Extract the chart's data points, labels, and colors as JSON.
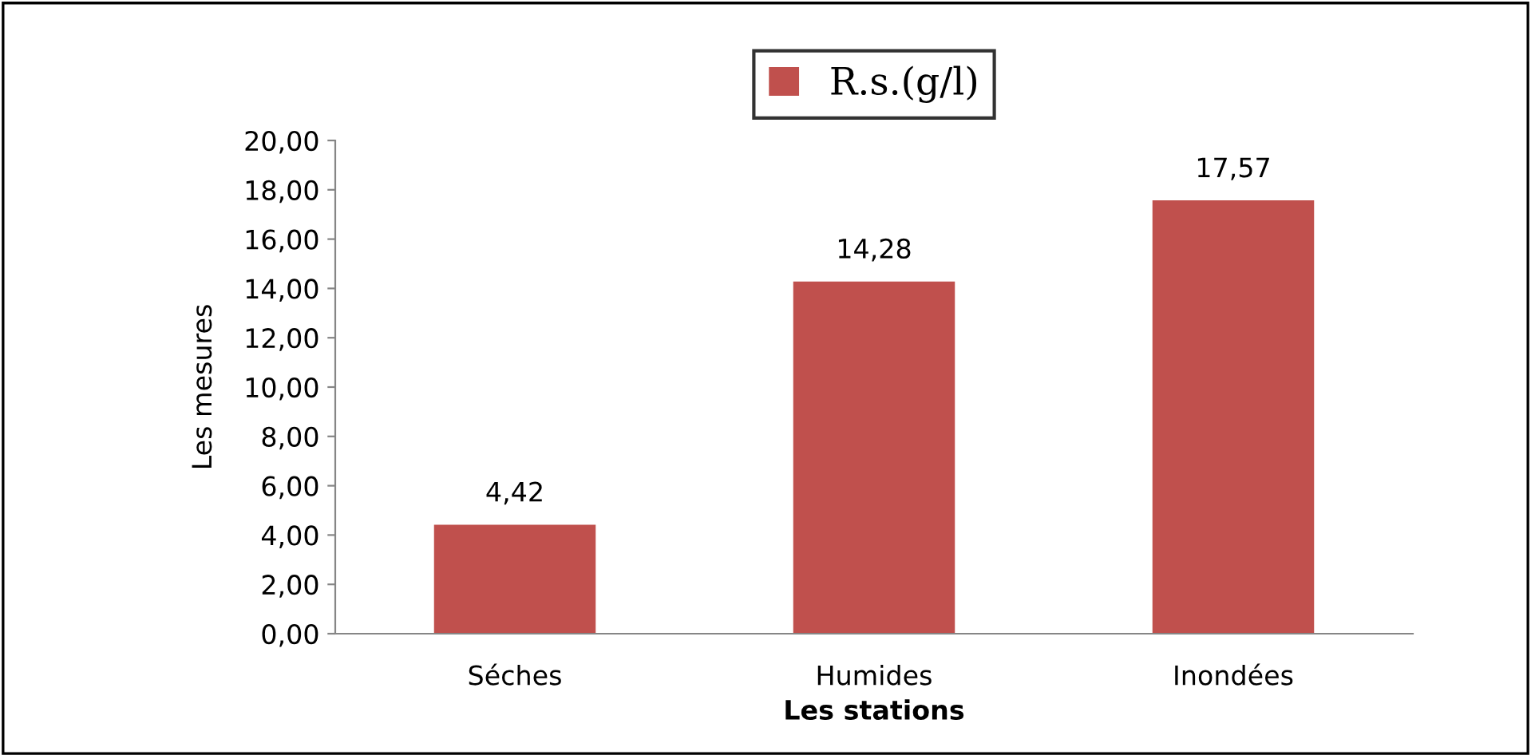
{
  "chart_data": {
    "type": "bar",
    "xlabel": "Les stations",
    "ylabel": "Les mesures",
    "categories": [
      "Séches",
      "Humides",
      "Inondées"
    ],
    "series": [
      {
        "name": "R.s.(g/l)",
        "color": "#c0504d",
        "values": [
          4.42,
          14.28,
          17.57
        ],
        "value_labels": [
          "4,42",
          "14,28",
          "17,57"
        ]
      }
    ],
    "ylim": [
      0,
      20
    ],
    "yticks": [
      {
        "value": 0,
        "label": "0,00"
      },
      {
        "value": 2,
        "label": "2,00"
      },
      {
        "value": 4,
        "label": "4,00"
      },
      {
        "value": 6,
        "label": "6,00"
      },
      {
        "value": 8,
        "label": "8,00"
      },
      {
        "value": 10,
        "label": "10,00"
      },
      {
        "value": 12,
        "label": "12,00"
      },
      {
        "value": 14,
        "label": "14,00"
      },
      {
        "value": 16,
        "label": "16,00"
      },
      {
        "value": 18,
        "label": "18,00"
      },
      {
        "value": 20,
        "label": "20,00"
      }
    ],
    "grid": false,
    "legend": "top"
  }
}
